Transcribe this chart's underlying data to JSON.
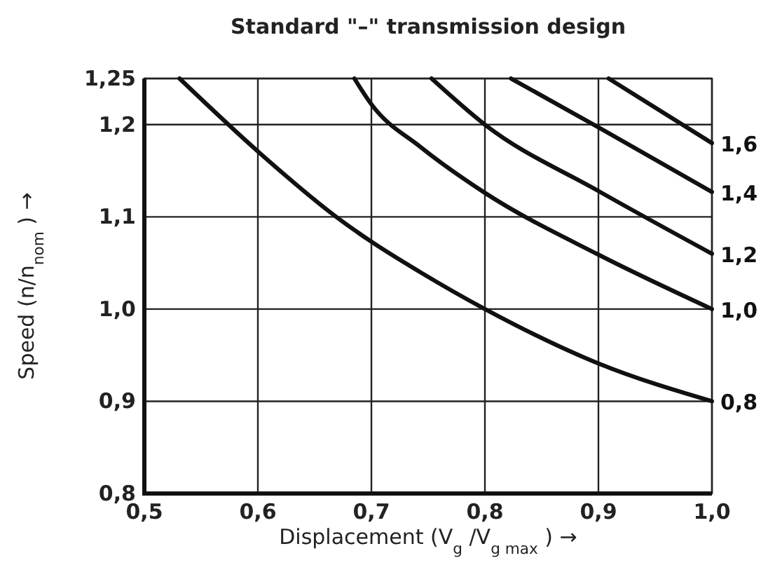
{
  "chart_data": {
    "type": "line",
    "title": "Standard \"–\" transmission design",
    "xlabel": "Displacement (V$_{g}$/V$_{g max}$) →",
    "ylabel": "Speed (n/n$_{nom}$) →",
    "xlim": [
      0.5,
      1.0
    ],
    "ylim": [
      0.8,
      1.25
    ],
    "xticks": [
      {
        "value": 0.5,
        "label": "0,5"
      },
      {
        "value": 0.6,
        "label": "0,6"
      },
      {
        "value": 0.7,
        "label": "0,7"
      },
      {
        "value": 0.8,
        "label": "0,8"
      },
      {
        "value": 0.9,
        "label": "0,9"
      },
      {
        "value": 1.0,
        "label": "1,0"
      }
    ],
    "yticks": [
      {
        "value": 0.8,
        "label": "0,8"
      },
      {
        "value": 0.9,
        "label": "0,9"
      },
      {
        "value": 1.0,
        "label": "1,0"
      },
      {
        "value": 1.1,
        "label": "1,1"
      },
      {
        "value": 1.2,
        "label": "1,2"
      },
      {
        "value": 1.25,
        "label": "1,25"
      }
    ],
    "grid": true,
    "marker": "none",
    "line_style": "solid",
    "series": [
      {
        "name": "0,8",
        "color": "#111111",
        "x": [
          0.531,
          0.6,
          0.669,
          0.7,
          0.743,
          0.8,
          0.9,
          1.0
        ],
        "values": [
          1.25,
          1.171,
          1.1,
          1.073,
          1.04,
          1.0,
          0.941,
          0.9
        ]
      },
      {
        "name": "1,0",
        "color": "#111111",
        "x": [
          0.685,
          0.7,
          0.743,
          0.8,
          0.9,
          1.0
        ],
        "values": [
          1.25,
          1.222,
          1.176,
          1.126,
          1.059,
          1.0
        ]
      },
      {
        "name": "1,2",
        "color": "#111111",
        "x": [
          0.753,
          0.8,
          0.9,
          1.0
        ],
        "values": [
          1.25,
          1.2,
          1.128,
          1.06
        ]
      },
      {
        "name": "1,4",
        "color": "#111111",
        "x": [
          0.823,
          0.9,
          1.0
        ],
        "values": [
          1.25,
          1.197,
          1.127
        ]
      },
      {
        "name": "1,6",
        "color": "#111111",
        "x": [
          0.909,
          1.0
        ],
        "values": [
          1.25,
          1.18
        ]
      }
    ]
  }
}
